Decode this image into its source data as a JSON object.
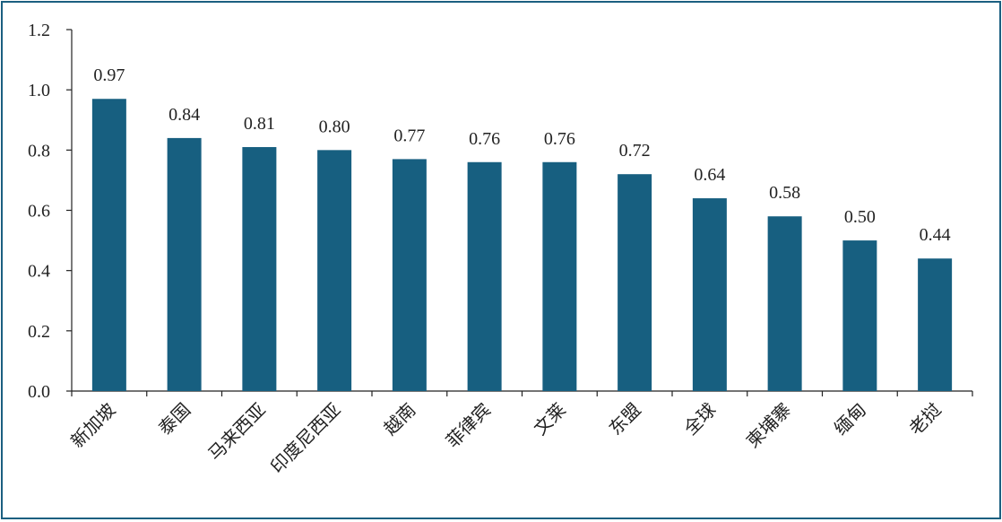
{
  "chart_data": {
    "type": "bar",
    "title": "",
    "xlabel": "",
    "ylabel": "",
    "ylim": [
      0,
      1.2
    ],
    "yticks": [
      "0.0",
      "0.2",
      "0.4",
      "0.6",
      "0.8",
      "1.0",
      "1.2"
    ],
    "categories": [
      "新加坡",
      "泰国",
      "马来西亚",
      "印度尼西亚",
      "越南",
      "菲律宾",
      "文莱",
      "东盟",
      "全球",
      "柬埔寨",
      "缅甸",
      "老挝"
    ],
    "values": [
      0.97,
      0.84,
      0.81,
      0.8,
      0.77,
      0.76,
      0.76,
      0.72,
      0.64,
      0.58,
      0.5,
      0.44
    ],
    "data_labels": [
      "0.97",
      "0.84",
      "0.81",
      "0.80",
      "0.77",
      "0.76",
      "0.76",
      "0.72",
      "0.64",
      "0.58",
      "0.50",
      "0.44"
    ],
    "bar_color": "#175f80",
    "border_color": "#1b5f80",
    "legend": "none",
    "grid": false
  }
}
